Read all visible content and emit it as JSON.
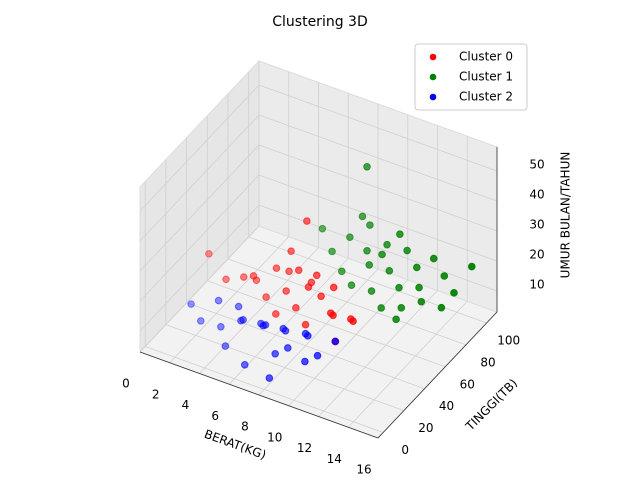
{
  "chart_data": {
    "type": "scatter3d",
    "title": "Clustering 3D",
    "xlabel": "BERAT(KG)",
    "ylabel": "TINGGI(TB)",
    "zlabel": "UMUR BULAN/TAHUN",
    "xlim": [
      0,
      16
    ],
    "ylim": [
      -5,
      110
    ],
    "zlim": [
      3,
      58
    ],
    "xticks": [
      0,
      2,
      4,
      6,
      8,
      10,
      12,
      14,
      16
    ],
    "yticks": [
      0,
      20,
      40,
      60,
      80,
      100
    ],
    "zticks": [
      10,
      20,
      30,
      40,
      50
    ],
    "legend": "upper right",
    "grid": true,
    "series": [
      {
        "name": "Cluster 0",
        "color": "red",
        "x": [
          1.5,
          3,
          3.5,
          4,
          4.5,
          5,
          5,
          5.5,
          6,
          6,
          6.5,
          7,
          7,
          7.5,
          8,
          8,
          8.5,
          9,
          9.5,
          10,
          10,
          10.5,
          6,
          5.5,
          7.5
        ],
        "y": [
          40,
          35,
          45,
          50,
          40,
          55,
          45,
          60,
          50,
          40,
          55,
          60,
          45,
          50,
          55,
          40,
          60,
          50,
          45,
          55,
          40,
          50,
          70,
          62,
          58
        ],
        "z": [
          22,
          18,
          16,
          14,
          20,
          18,
          12,
          16,
          14,
          10,
          20,
          15,
          12,
          18,
          14,
          10,
          16,
          12,
          14,
          10,
          8,
          12,
          30,
          22,
          19
        ]
      },
      {
        "name": "Cluster 1",
        "color": "green",
        "x": [
          6,
          7,
          7.5,
          8,
          8.5,
          9,
          9,
          9.5,
          10,
          10,
          10.5,
          11,
          11,
          11.5,
          12,
          12,
          12.5,
          13,
          13.5,
          14,
          14.5,
          15,
          9,
          11,
          8,
          12,
          10.5,
          13
        ],
        "y": [
          85,
          80,
          90,
          75,
          95,
          85,
          70,
          80,
          90,
          75,
          85,
          95,
          70,
          80,
          90,
          75,
          85,
          80,
          95,
          85,
          90,
          100,
          85,
          88,
          95,
          70,
          78,
          92
        ],
        "z": [
          22,
          18,
          20,
          15,
          24,
          20,
          14,
          18,
          22,
          12,
          16,
          20,
          10,
          14,
          18,
          10,
          14,
          12,
          16,
          10,
          14,
          20,
          48,
          28,
          26,
          8,
          24,
          22
        ]
      },
      {
        "name": "Cluster 2",
        "color": "blue",
        "x": [
          1,
          2,
          2.5,
          3,
          3.5,
          4,
          4.5,
          5,
          5.5,
          6,
          6.5,
          7,
          7,
          7.5,
          8,
          8.5,
          9,
          9.5,
          10,
          4,
          6,
          8
        ],
        "y": [
          30,
          25,
          35,
          30,
          40,
          35,
          30,
          40,
          35,
          30,
          40,
          25,
          35,
          30,
          40,
          35,
          25,
          30,
          40,
          20,
          10,
          5
        ],
        "z": [
          8,
          6,
          10,
          4,
          8,
          6,
          9,
          5,
          7,
          10,
          6,
          4,
          8,
          5,
          7,
          9,
          5,
          6,
          8,
          3,
          4,
          5
        ]
      }
    ]
  }
}
